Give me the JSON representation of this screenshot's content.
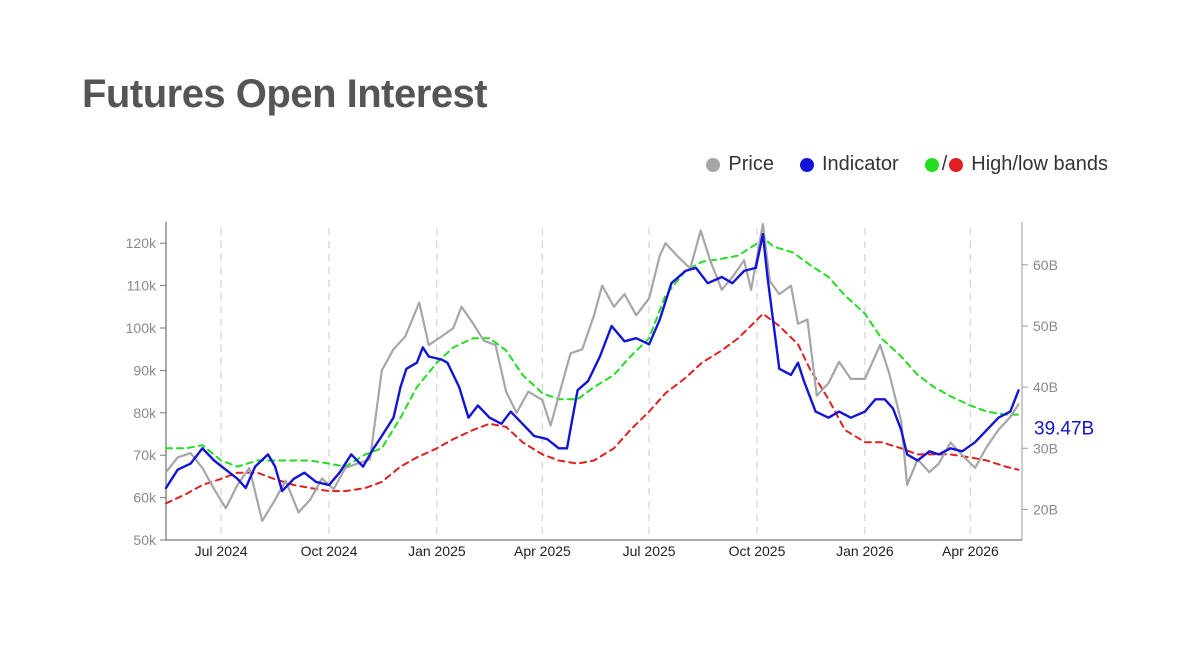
{
  "page": {
    "title": "Futures Open Interest"
  },
  "legend": {
    "price": "Price",
    "indicator": "Indicator",
    "bands_slash": "/",
    "bands": "High/low bands"
  },
  "colors": {
    "price": "#a6a6a6",
    "indicator": "#1414d6",
    "high_band": "#22dd22",
    "low_band": "#e02020",
    "title": "#555555",
    "last_value": "#1414c8"
  },
  "chart_data": {
    "type": "line",
    "title": "Futures Open Interest",
    "x_ticks": [
      "Jul 2024",
      "Oct 2024",
      "Jan 2025",
      "Apr 2025",
      "Jul 2025",
      "Oct 2025",
      "Jan 2026",
      "Apr 2026"
    ],
    "left_axis": {
      "ticks": [
        "50k",
        "60k",
        "70k",
        "80k",
        "90k",
        "100k",
        "110k",
        "120k"
      ],
      "range": [
        50000,
        125000
      ]
    },
    "right_axis": {
      "ticks": [
        "20B",
        "30B",
        "40B",
        "50B",
        "60B"
      ],
      "range": [
        15,
        67
      ]
    },
    "x_range": [
      "2024-05-15",
      "2026-05-15"
    ],
    "grid": "vertical dashed at x ticks",
    "legend_position": "top-right",
    "last_value_label": "39.47B",
    "series": [
      {
        "name": "Price",
        "axis": "left",
        "points": [
          [
            "2024-05-15",
            66000
          ],
          [
            "2024-05-25",
            69500
          ],
          [
            "2024-06-05",
            70500
          ],
          [
            "2024-06-15",
            67000
          ],
          [
            "2024-06-25",
            62000
          ],
          [
            "2024-07-05",
            57500
          ],
          [
            "2024-07-15",
            63000
          ],
          [
            "2024-07-25",
            67000
          ],
          [
            "2024-08-05",
            54500
          ],
          [
            "2024-08-15",
            59000
          ],
          [
            "2024-08-25",
            64000
          ],
          [
            "2024-09-05",
            56500
          ],
          [
            "2024-09-15",
            59500
          ],
          [
            "2024-09-25",
            64500
          ],
          [
            "2024-10-05",
            62000
          ],
          [
            "2024-10-15",
            67000
          ],
          [
            "2024-10-25",
            68000
          ],
          [
            "2024-11-05",
            69000
          ],
          [
            "2024-11-15",
            90000
          ],
          [
            "2024-11-25",
            95000
          ],
          [
            "2024-12-05",
            98000
          ],
          [
            "2024-12-17",
            106000
          ],
          [
            "2024-12-25",
            96000
          ],
          [
            "2025-01-05",
            98000
          ],
          [
            "2025-01-15",
            100000
          ],
          [
            "2025-01-22",
            105000
          ],
          [
            "2025-02-01",
            101000
          ],
          [
            "2025-02-10",
            97000
          ],
          [
            "2025-02-20",
            96000
          ],
          [
            "2025-03-01",
            85000
          ],
          [
            "2025-03-10",
            80000
          ],
          [
            "2025-03-20",
            85000
          ],
          [
            "2025-04-01",
            83000
          ],
          [
            "2025-04-08",
            77000
          ],
          [
            "2025-04-15",
            84000
          ],
          [
            "2025-04-25",
            94000
          ],
          [
            "2025-05-05",
            95000
          ],
          [
            "2025-05-15",
            103000
          ],
          [
            "2025-05-22",
            110000
          ],
          [
            "2025-06-01",
            105000
          ],
          [
            "2025-06-10",
            108000
          ],
          [
            "2025-06-20",
            103000
          ],
          [
            "2025-07-01",
            107000
          ],
          [
            "2025-07-10",
            117000
          ],
          [
            "2025-07-15",
            120000
          ],
          [
            "2025-07-25",
            117000
          ],
          [
            "2025-08-05",
            114000
          ],
          [
            "2025-08-14",
            123000
          ],
          [
            "2025-08-22",
            116000
          ],
          [
            "2025-09-01",
            109000
          ],
          [
            "2025-09-10",
            112000
          ],
          [
            "2025-09-20",
            116000
          ],
          [
            "2025-09-26",
            109000
          ],
          [
            "2025-10-06",
            124500
          ],
          [
            "2025-10-12",
            111000
          ],
          [
            "2025-10-20",
            108000
          ],
          [
            "2025-10-30",
            110000
          ],
          [
            "2025-11-05",
            101000
          ],
          [
            "2025-11-13",
            102000
          ],
          [
            "2025-11-21",
            84000
          ],
          [
            "2025-12-01",
            87000
          ],
          [
            "2025-12-10",
            92000
          ],
          [
            "2025-12-20",
            88000
          ],
          [
            "2026-01-01",
            88000
          ],
          [
            "2026-01-14",
            96000
          ],
          [
            "2026-01-22",
            89000
          ],
          [
            "2026-02-01",
            78000
          ],
          [
            "2026-02-06",
            63000
          ],
          [
            "2026-02-15",
            69000
          ],
          [
            "2026-02-25",
            66000
          ],
          [
            "2026-03-05",
            68000
          ],
          [
            "2026-03-15",
            73000
          ],
          [
            "2026-03-25",
            70000
          ],
          [
            "2026-04-05",
            67000
          ],
          [
            "2026-04-15",
            72000
          ],
          [
            "2026-04-25",
            76000
          ],
          [
            "2026-05-05",
            79000
          ],
          [
            "2026-05-12",
            82000
          ]
        ]
      },
      {
        "name": "Indicator",
        "axis": "right",
        "points": [
          [
            "2024-05-15",
            23.5
          ],
          [
            "2024-05-25",
            26.5
          ],
          [
            "2024-06-05",
            27.5
          ],
          [
            "2024-06-15",
            30
          ],
          [
            "2024-06-25",
            28
          ],
          [
            "2024-07-05",
            26.5
          ],
          [
            "2024-07-15",
            25
          ],
          [
            "2024-07-22",
            23.5
          ],
          [
            "2024-07-30",
            27
          ],
          [
            "2024-08-10",
            29
          ],
          [
            "2024-08-16",
            27
          ],
          [
            "2024-08-22",
            23
          ],
          [
            "2024-09-01",
            25
          ],
          [
            "2024-09-10",
            26
          ],
          [
            "2024-09-20",
            24.5
          ],
          [
            "2024-10-01",
            24
          ],
          [
            "2024-10-10",
            26
          ],
          [
            "2024-10-20",
            29
          ],
          [
            "2024-10-30",
            27
          ],
          [
            "2024-11-08",
            30
          ],
          [
            "2024-11-15",
            32
          ],
          [
            "2024-11-25",
            35
          ],
          [
            "2024-12-01",
            40
          ],
          [
            "2024-12-06",
            43
          ],
          [
            "2024-12-15",
            44
          ],
          [
            "2024-12-20",
            46.5
          ],
          [
            "2024-12-25",
            45
          ],
          [
            "2025-01-05",
            44.5
          ],
          [
            "2025-01-10",
            44
          ],
          [
            "2025-01-20",
            40
          ],
          [
            "2025-01-28",
            35
          ],
          [
            "2025-02-05",
            37
          ],
          [
            "2025-02-15",
            35
          ],
          [
            "2025-02-25",
            34
          ],
          [
            "2025-03-05",
            36
          ],
          [
            "2025-03-15",
            34
          ],
          [
            "2025-03-25",
            32
          ],
          [
            "2025-04-05",
            31.5
          ],
          [
            "2025-04-15",
            30
          ],
          [
            "2025-04-22",
            30
          ],
          [
            "2025-05-01",
            39.5
          ],
          [
            "2025-05-10",
            41
          ],
          [
            "2025-05-20",
            45
          ],
          [
            "2025-05-30",
            50
          ],
          [
            "2025-06-10",
            47.5
          ],
          [
            "2025-06-20",
            48
          ],
          [
            "2025-07-01",
            47
          ],
          [
            "2025-07-10",
            51
          ],
          [
            "2025-07-20",
            57
          ],
          [
            "2025-08-01",
            59
          ],
          [
            "2025-08-10",
            59.5
          ],
          [
            "2025-08-20",
            57
          ],
          [
            "2025-09-01",
            58
          ],
          [
            "2025-09-10",
            57
          ],
          [
            "2025-09-20",
            59
          ],
          [
            "2025-09-30",
            59.5
          ],
          [
            "2025-10-06",
            65
          ],
          [
            "2025-10-10",
            58
          ],
          [
            "2025-10-20",
            43
          ],
          [
            "2025-10-30",
            42
          ],
          [
            "2025-11-05",
            44
          ],
          [
            "2025-11-10",
            41
          ],
          [
            "2025-11-20",
            36
          ],
          [
            "2025-12-01",
            35
          ],
          [
            "2025-12-10",
            36
          ],
          [
            "2025-12-20",
            35
          ],
          [
            "2026-01-01",
            36
          ],
          [
            "2026-01-10",
            38
          ],
          [
            "2026-01-18",
            38
          ],
          [
            "2026-01-25",
            36.5
          ],
          [
            "2026-02-01",
            33
          ],
          [
            "2026-02-06",
            29
          ],
          [
            "2026-02-15",
            28
          ],
          [
            "2026-02-25",
            29.5
          ],
          [
            "2026-03-05",
            29
          ],
          [
            "2026-03-15",
            30
          ],
          [
            "2026-03-25",
            29.5
          ],
          [
            "2026-04-05",
            31
          ],
          [
            "2026-04-15",
            33
          ],
          [
            "2026-04-25",
            35
          ],
          [
            "2026-05-05",
            36
          ],
          [
            "2026-05-12",
            39.47
          ]
        ]
      },
      {
        "name": "High band",
        "axis": "right",
        "points": [
          [
            "2024-05-15",
            30
          ],
          [
            "2024-06-01",
            30
          ],
          [
            "2024-06-15",
            30.5
          ],
          [
            "2024-07-01",
            28
          ],
          [
            "2024-07-15",
            27
          ],
          [
            "2024-08-01",
            28
          ],
          [
            "2024-08-15",
            28
          ],
          [
            "2024-09-01",
            28
          ],
          [
            "2024-09-15",
            28
          ],
          [
            "2024-10-01",
            27.5
          ],
          [
            "2024-10-15",
            27
          ],
          [
            "2024-11-01",
            29
          ],
          [
            "2024-11-15",
            30
          ],
          [
            "2024-12-01",
            35
          ],
          [
            "2024-12-15",
            40
          ],
          [
            "2025-01-01",
            44
          ],
          [
            "2025-01-15",
            46.5
          ],
          [
            "2025-02-01",
            48
          ],
          [
            "2025-02-15",
            48
          ],
          [
            "2025-03-01",
            46
          ],
          [
            "2025-03-15",
            42
          ],
          [
            "2025-04-01",
            39
          ],
          [
            "2025-04-15",
            38
          ],
          [
            "2025-05-01",
            38
          ],
          [
            "2025-05-15",
            40
          ],
          [
            "2025-06-01",
            42
          ],
          [
            "2025-06-15",
            45
          ],
          [
            "2025-07-01",
            48
          ],
          [
            "2025-07-15",
            55
          ],
          [
            "2025-08-01",
            59
          ],
          [
            "2025-08-15",
            60.5
          ],
          [
            "2025-09-01",
            61
          ],
          [
            "2025-09-15",
            61.5
          ],
          [
            "2025-10-01",
            63.5
          ],
          [
            "2025-10-06",
            64.5
          ],
          [
            "2025-10-15",
            63
          ],
          [
            "2025-11-01",
            62
          ],
          [
            "2025-11-15",
            60
          ],
          [
            "2025-12-01",
            58
          ],
          [
            "2025-12-15",
            55
          ],
          [
            "2026-01-01",
            52
          ],
          [
            "2026-01-15",
            48
          ],
          [
            "2026-02-01",
            45
          ],
          [
            "2026-02-15",
            42
          ],
          [
            "2026-03-01",
            40
          ],
          [
            "2026-03-15",
            38.5
          ],
          [
            "2026-04-01",
            37
          ],
          [
            "2026-04-15",
            36
          ],
          [
            "2026-05-01",
            35.5
          ],
          [
            "2026-05-12",
            35.5
          ]
        ]
      },
      {
        "name": "Low band",
        "axis": "right",
        "points": [
          [
            "2024-05-15",
            21
          ],
          [
            "2024-06-01",
            22.5
          ],
          [
            "2024-06-15",
            24
          ],
          [
            "2024-07-01",
            25
          ],
          [
            "2024-07-15",
            26
          ],
          [
            "2024-08-01",
            26
          ],
          [
            "2024-08-15",
            25
          ],
          [
            "2024-09-01",
            24
          ],
          [
            "2024-09-15",
            23.5
          ],
          [
            "2024-10-01",
            23
          ],
          [
            "2024-10-15",
            23
          ],
          [
            "2024-11-01",
            23.5
          ],
          [
            "2024-11-15",
            24.5
          ],
          [
            "2024-12-01",
            27
          ],
          [
            "2024-12-15",
            28.5
          ],
          [
            "2025-01-01",
            30
          ],
          [
            "2025-01-15",
            31.5
          ],
          [
            "2025-02-01",
            33
          ],
          [
            "2025-02-15",
            34
          ],
          [
            "2025-03-01",
            33.5
          ],
          [
            "2025-03-15",
            31
          ],
          [
            "2025-04-01",
            29
          ],
          [
            "2025-04-15",
            28
          ],
          [
            "2025-05-01",
            27.5
          ],
          [
            "2025-05-15",
            28
          ],
          [
            "2025-06-01",
            30
          ],
          [
            "2025-06-15",
            33
          ],
          [
            "2025-07-01",
            36
          ],
          [
            "2025-07-15",
            39
          ],
          [
            "2025-08-01",
            41.5
          ],
          [
            "2025-08-15",
            44
          ],
          [
            "2025-09-01",
            46
          ],
          [
            "2025-09-15",
            48
          ],
          [
            "2025-10-01",
            51
          ],
          [
            "2025-10-06",
            52
          ],
          [
            "2025-10-20",
            50
          ],
          [
            "2025-11-05",
            47
          ],
          [
            "2025-11-15",
            43
          ],
          [
            "2025-12-01",
            38
          ],
          [
            "2025-12-15",
            33
          ],
          [
            "2026-01-01",
            31
          ],
          [
            "2026-01-15",
            31
          ],
          [
            "2026-02-01",
            30
          ],
          [
            "2026-02-15",
            29
          ],
          [
            "2026-03-01",
            29
          ],
          [
            "2026-03-15",
            29
          ],
          [
            "2026-04-01",
            28.5
          ],
          [
            "2026-04-15",
            28
          ],
          [
            "2026-05-01",
            27
          ],
          [
            "2026-05-12",
            26.5
          ]
        ]
      }
    ]
  }
}
